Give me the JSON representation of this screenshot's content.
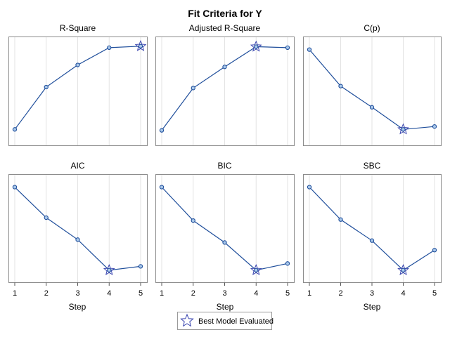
{
  "figure": {
    "title": "Fit Criteria for Y",
    "xlabel": "Step",
    "legend_label": "Best Model Evaluated"
  },
  "colors": {
    "line": "#1f4e9b",
    "marker_fill": "#a9c8ea",
    "star": "#3b46b0",
    "frame": "#8c8c8c",
    "grid": "#e3e3e3"
  },
  "chart_data": [
    {
      "type": "line",
      "title": "R-Square",
      "x": [
        1,
        2,
        3,
        4,
        5
      ],
      "values": [
        0.1,
        0.54,
        0.77,
        0.95,
        0.965
      ],
      "ylim": [
        0,
        1
      ],
      "best_step": 5
    },
    {
      "type": "line",
      "title": "Adjusted R-Square",
      "x": [
        1,
        2,
        3,
        4,
        5
      ],
      "values": [
        0.09,
        0.53,
        0.75,
        0.96,
        0.95
      ],
      "ylim": [
        0,
        1
      ],
      "best_step": 4
    },
    {
      "type": "line",
      "title": "C(p)",
      "x": [
        1,
        2,
        3,
        4,
        5
      ],
      "values": [
        0.93,
        0.55,
        0.33,
        0.1,
        0.13
      ],
      "ylim": [
        0,
        1
      ],
      "best_step": 4
    },
    {
      "type": "line",
      "title": "AIC",
      "x": [
        1,
        2,
        3,
        4,
        5
      ],
      "values": [
        0.93,
        0.61,
        0.38,
        0.06,
        0.1
      ],
      "ylim": [
        0,
        1
      ],
      "best_step": 4
    },
    {
      "type": "line",
      "title": "BIC",
      "x": [
        1,
        2,
        3,
        4,
        5
      ],
      "values": [
        0.93,
        0.58,
        0.35,
        0.06,
        0.13
      ],
      "ylim": [
        0,
        1
      ],
      "best_step": 4
    },
    {
      "type": "line",
      "title": "SBC",
      "x": [
        1,
        2,
        3,
        4,
        5
      ],
      "values": [
        0.93,
        0.59,
        0.37,
        0.06,
        0.27
      ],
      "ylim": [
        0,
        1
      ],
      "best_step": 4
    }
  ]
}
